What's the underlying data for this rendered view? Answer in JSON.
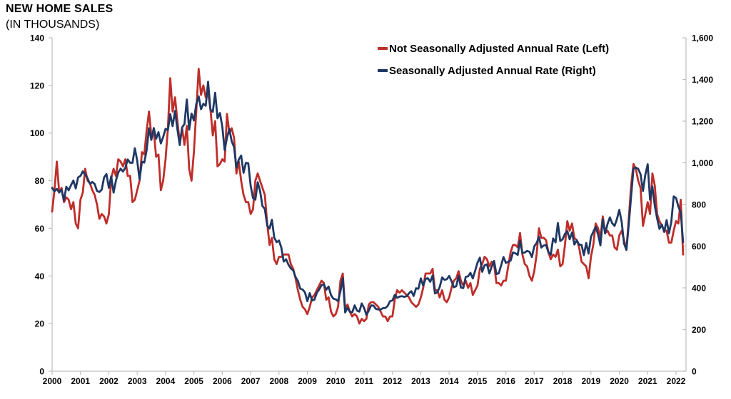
{
  "page": {
    "title": "NEW HOME SALES",
    "subtitle": "(IN THOUSANDS)"
  },
  "colors": {
    "axis": "#bfbfbf",
    "text": "#000000",
    "nsa_red": "#be2e2a",
    "saar_navy": "#1f3864"
  },
  "chart_data": {
    "type": "line",
    "title": "NEW HOME SALES",
    "subtitle": "(IN THOUSANDS)",
    "xlabel": "",
    "ylabel_left": "",
    "ylabel_right": "",
    "grid": false,
    "legend_position": "top-center",
    "x_start": "2000-01",
    "x_end": "2022-04",
    "points_per_year": 12,
    "x_tick_labels": [
      "2000",
      "2001",
      "2002",
      "2003",
      "2004",
      "2005",
      "2006",
      "2007",
      "2008",
      "2009",
      "2010",
      "2011",
      "2012",
      "2013",
      "2014",
      "2015",
      "2016",
      "2017",
      "2018",
      "2019",
      "2020",
      "2021",
      "2022"
    ],
    "left_axis": {
      "min": 0,
      "max": 140,
      "step": 20,
      "tick_labels": [
        "0",
        "20",
        "40",
        "60",
        "80",
        "100",
        "120",
        "140"
      ]
    },
    "right_axis": {
      "min": 0,
      "max": 1600,
      "step": 200,
      "tick_labels": [
        "0",
        "200",
        "400",
        "600",
        "800",
        "1,000",
        "1,200",
        "1,400",
        "1,600"
      ]
    },
    "series": [
      {
        "id": "nsa",
        "name": "Not Seasonally Adjusted Annual Rate (Left)",
        "axis": "left",
        "color": "#be2e2a",
        "values": [
          67,
          76,
          88,
          75,
          77,
          71,
          73,
          72,
          68,
          71,
          62,
          60,
          72,
          75,
          85,
          80,
          79,
          76,
          74,
          70,
          64,
          66,
          65,
          62,
          66,
          81,
          85,
          82,
          89,
          88,
          86,
          89,
          82,
          82,
          71,
          72,
          76,
          80,
          92,
          91,
          101,
          109,
          99,
          101,
          90,
          91,
          76,
          80,
          89,
          102,
          123,
          109,
          115,
          105,
          96,
          102,
          95,
          103,
          85,
          80,
          92,
          109,
          127,
          116,
          120,
          115,
          117,
          110,
          99,
          105,
          86,
          87,
          89,
          88,
          108,
          100,
          102,
          98,
          83,
          88,
          80,
          74,
          71,
          71,
          66,
          68,
          80,
          83,
          80,
          77,
          74,
          62,
          53,
          56,
          47,
          45,
          48,
          48,
          49,
          49,
          49,
          45,
          43,
          39,
          34,
          30,
          27,
          26,
          24,
          27,
          31,
          32,
          34,
          36,
          38,
          37,
          30,
          31,
          25,
          23,
          24,
          27,
          38,
          41,
          26,
          28,
          25,
          23,
          24,
          23,
          20,
          22,
          21,
          22,
          28,
          29,
          29,
          28,
          27,
          25,
          23,
          23,
          21,
          23,
          23,
          30,
          34,
          33,
          34,
          33,
          32,
          31,
          29,
          28,
          27,
          28,
          31,
          35,
          41,
          41,
          41,
          43,
          34,
          34,
          31,
          34,
          30,
          29,
          31,
          35,
          38,
          39,
          42,
          38,
          36,
          38,
          35,
          37,
          32,
          34,
          36,
          43,
          45,
          48,
          47,
          44,
          46,
          45,
          37,
          37,
          36,
          38,
          38,
          44,
          50,
          53,
          53,
          52,
          58,
          49,
          45,
          44,
          40,
          38,
          42,
          49,
          60,
          56,
          56,
          55,
          50,
          47,
          49,
          48,
          51,
          44,
          45,
          53,
          63,
          59,
          62,
          56,
          55,
          52,
          46,
          45,
          44,
          39,
          48,
          53,
          62,
          60,
          56,
          65,
          58,
          59,
          57,
          57,
          52,
          51,
          57,
          59,
          55,
          51,
          64,
          78,
          87,
          85,
          80,
          77,
          61,
          66,
          71,
          66,
          83,
          78,
          66,
          63,
          61,
          59,
          59,
          54,
          54,
          59,
          63,
          62,
          72,
          49
        ]
      },
      {
        "id": "saar",
        "name": "Seasonally Adjusted Annual Rate (Right)",
        "axis": "right",
        "color": "#1f3864",
        "values": [
          880,
          863,
          875,
          858,
          870,
          820,
          885,
          868,
          893,
          915,
          877,
          930,
          937,
          959,
          944,
          925,
          899,
          908,
          898,
          865,
          860,
          871,
          930,
          946,
          880,
          935,
          857,
          915,
          954,
          972,
          958,
          976,
          1016,
          1000,
          1000,
          1070,
          1010,
          920,
          1005,
          1001,
          1060,
          1166,
          1110,
          1167,
          1116,
          1147,
          1093,
          1124,
          1163,
          1157,
          1233,
          1176,
          1249,
          1161,
          1085,
          1170,
          1186,
          1304,
          1159,
          1236,
          1203,
          1281,
          1319,
          1257,
          1283,
          1274,
          1389,
          1255,
          1244,
          1336,
          1214,
          1239,
          1174,
          1061,
          1121,
          1162,
          1103,
          1075,
          977,
          1016,
          1035,
          952,
          1000,
          998,
          891,
          831,
          823,
          907,
          865,
          793,
          778,
          699,
          684,
          727,
          641,
          619,
          627,
          593,
          526,
          537,
          511,
          493,
          484,
          452,
          433,
          396,
          392,
          378,
          336,
          375,
          339,
          344,
          376,
          392,
          413,
          417,
          391,
          406,
          365,
          348,
          345,
          336,
          384,
          446,
          282,
          305,
          285,
          282,
          316,
          291,
          286,
          325,
          304,
          270,
          291,
          316,
          315,
          299,
          296,
          296,
          303,
          303,
          314,
          336,
          339,
          366,
          352,
          358,
          360,
          357,
          360,
          374,
          384,
          361,
          398,
          396,
          445,
          411,
          443,
          446,
          429,
          459,
          373,
          379,
          403,
          450,
          439,
          441,
          457,
          432,
          403,
          408,
          457,
          401,
          399,
          453,
          455,
          472,
          445,
          482,
          521,
          545,
          477,
          508,
          513,
          469,
          502,
          529,
          466,
          470,
          508,
          548,
          520,
          525,
          531,
          570,
          566,
          558,
          627,
          567,
          570,
          577,
          573,
          548,
          599,
          615,
          644,
          593,
          603,
          606,
          571,
          559,
          637,
          618,
          711,
          625,
          633,
          659,
          672,
          633,
          666,
          608,
          628,
          607,
          607,
          557,
          615,
          564,
          644,
          669,
          693,
          656,
          604,
          729,
          661,
          706,
          738,
          710,
          697,
          730,
          774,
          716,
          612,
          582,
          704,
          840,
          972,
          977,
          971,
          945,
          865,
          943,
          993,
          823,
          886,
          796,
          733,
          683,
          704,
          668,
          725,
          662,
          717,
          839,
          831,
          790,
          763,
          619
        ]
      }
    ]
  }
}
